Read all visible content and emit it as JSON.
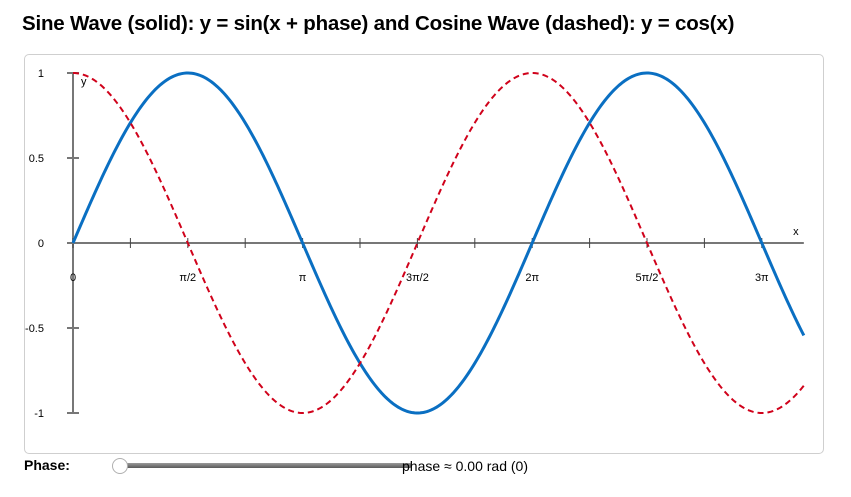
{
  "title": "Sine Wave (solid): y = sin(x + phase) and Cosine Wave (dashed): y = cos(x)",
  "controls": {
    "phase_label": "Phase:",
    "phase_readout": "phase ≈ 0.00 rad (0)",
    "slider_value": 0
  },
  "colors": {
    "sine": "#0a6fc2",
    "cosine": "#d0021b",
    "axis": "#777777",
    "frame_border": "#cfcfcf"
  },
  "chart_data": {
    "type": "line",
    "title": "Sine Wave (solid): y = sin(x + phase) and Cosine Wave (dashed): y = cos(x)",
    "xlabel": "x",
    "ylabel": "y",
    "xlim": [
      0,
      10
    ],
    "ylim": [
      -1,
      1
    ],
    "grid": false,
    "x_ticks": [
      0,
      0.7854,
      1.5708,
      2.3562,
      3.1416,
      3.927,
      4.7124,
      5.4978,
      6.2832,
      7.0686,
      7.854,
      8.6394,
      9.4248
    ],
    "x_tick_labels": [
      "0",
      "",
      "π/2",
      "",
      "π",
      "",
      "3π/2",
      "",
      "2π",
      "",
      "5π/2",
      "",
      "3π"
    ],
    "y_ticks": [
      1,
      0.5,
      0,
      -0.5,
      -1
    ],
    "y_tick_labels": [
      "1",
      "0.5",
      "0",
      "-0.5",
      "-1"
    ],
    "phase": 0,
    "series": [
      {
        "name": "sin(x + phase)",
        "style": "solid",
        "color": "#0a6fc2",
        "x": [
          0,
          0.7854,
          1.5708,
          2.3562,
          3.1416,
          3.927,
          4.7124,
          5.4978,
          6.2832,
          7.0686,
          7.854,
          8.6394,
          9.4248,
          10
        ],
        "values": [
          0,
          0.707,
          1,
          0.707,
          0,
          -0.707,
          -1,
          -0.707,
          0,
          0.707,
          1,
          0.707,
          0,
          -0.544
        ]
      },
      {
        "name": "cos(x)",
        "style": "dashed",
        "color": "#d0021b",
        "x": [
          0,
          0.7854,
          1.5708,
          2.3562,
          3.1416,
          3.927,
          4.7124,
          5.4978,
          6.2832,
          7.0686,
          7.854,
          8.6394,
          9.4248,
          10
        ],
        "values": [
          1,
          0.707,
          0,
          -0.707,
          -1,
          -0.707,
          0,
          0.707,
          1,
          0.707,
          0,
          -0.707,
          -1,
          -0.839
        ]
      }
    ]
  }
}
